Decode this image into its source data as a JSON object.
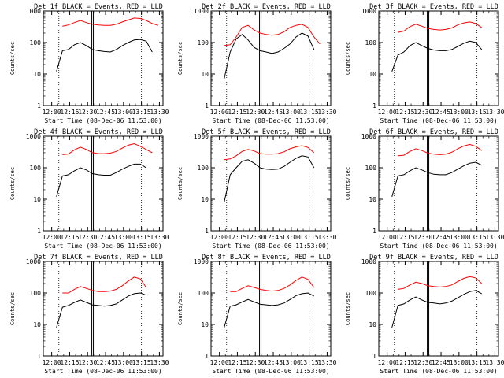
{
  "figure": {
    "ylabel": "Counts/sec",
    "xtick_labels": [
      "12:00",
      "12:15",
      "12:30",
      "12:45",
      "13:00",
      "13:15",
      "13:30"
    ],
    "ytick_labels": [
      "1",
      "10",
      "100",
      "1000"
    ]
  },
  "chart_data": [
    {
      "type": "line",
      "title": "Det 1f BLACK = Events, RED = LLD",
      "xlabel": "Start Time (08-Dec-06 11:53:00)",
      "ylabel": "Counts/sec",
      "yscale": "log",
      "ylim": [
        1,
        1000
      ],
      "x_minutes": [
        11,
        16,
        21,
        26,
        31,
        36,
        41,
        46,
        51,
        56,
        61,
        66,
        71,
        76,
        81,
        86,
        91,
        96
      ],
      "series": [
        {
          "name": "Events",
          "color": "#000000",
          "values": [
            12,
            55,
            60,
            85,
            100,
            80,
            60,
            55,
            52,
            50,
            60,
            80,
            100,
            120,
            125,
            110,
            50,
            null
          ]
        },
        {
          "name": "LLD",
          "color": "#ff0000",
          "values": [
            null,
            330,
            360,
            430,
            500,
            430,
            380,
            360,
            350,
            350,
            380,
            450,
            520,
            600,
            580,
            500,
            400,
            350
          ]
        }
      ]
    },
    {
      "type": "line",
      "title": "Det 2f BLACK = Events, RED = LLD",
      "xlabel": "Start Time (08-Dec-06 11:53:00)",
      "ylabel": "Counts/sec",
      "yscale": "log",
      "ylim": [
        1,
        1000
      ],
      "x_minutes": [
        11,
        16,
        21,
        26,
        31,
        36,
        41,
        46,
        51,
        56,
        61,
        66,
        71,
        76,
        81,
        86,
        91,
        96
      ],
      "series": [
        {
          "name": "Events",
          "color": "#000000",
          "values": [
            7,
            50,
            130,
            180,
            120,
            70,
            55,
            50,
            45,
            50,
            65,
            90,
            150,
            200,
            160,
            60,
            null,
            null
          ]
        },
        {
          "name": "LLD",
          "color": "#ff0000",
          "values": [
            80,
            85,
            150,
            300,
            350,
            250,
            200,
            180,
            170,
            180,
            220,
            300,
            350,
            380,
            300,
            150,
            90,
            null
          ]
        }
      ]
    },
    {
      "type": "line",
      "title": "Det 3f BLACK = Events, RED = LLD",
      "xlabel": "Start Time (08-Dec-06 11:53:00)",
      "ylabel": "Counts/sec",
      "yscale": "log",
      "ylim": [
        1,
        1000
      ],
      "x_minutes": [
        11,
        16,
        21,
        26,
        31,
        36,
        41,
        46,
        51,
        56,
        61,
        66,
        71,
        76,
        81,
        86,
        91,
        96
      ],
      "series": [
        {
          "name": "Events",
          "color": "#000000",
          "values": [
            12,
            40,
            50,
            80,
            100,
            80,
            65,
            58,
            55,
            55,
            60,
            75,
            95,
            110,
            100,
            60,
            null,
            null
          ]
        },
        {
          "name": "LLD",
          "color": "#ff0000",
          "values": [
            null,
            210,
            230,
            320,
            380,
            330,
            280,
            260,
            250,
            260,
            290,
            360,
            420,
            450,
            400,
            300,
            null,
            null
          ]
        }
      ]
    },
    {
      "type": "line",
      "title": "Det 4f BLACK = Events, RED = LLD",
      "xlabel": "Start Time (08-Dec-06 11:53:00)",
      "ylabel": "Counts/sec",
      "yscale": "log",
      "ylim": [
        1,
        1000
      ],
      "x_minutes": [
        11,
        16,
        21,
        26,
        31,
        36,
        41,
        46,
        51,
        56,
        61,
        66,
        71,
        76,
        81,
        86,
        91,
        96
      ],
      "series": [
        {
          "name": "Events",
          "color": "#000000",
          "values": [
            12,
            55,
            60,
            80,
            100,
            85,
            65,
            60,
            58,
            58,
            70,
            90,
            110,
            130,
            130,
            100,
            null,
            null
          ]
        },
        {
          "name": "LLD",
          "color": "#ff0000",
          "values": [
            null,
            260,
            270,
            370,
            450,
            380,
            300,
            280,
            280,
            290,
            330,
            420,
            520,
            580,
            480,
            380,
            300,
            null
          ]
        }
      ]
    },
    {
      "type": "line",
      "title": "Det 5f BLACK = Events, RED = LLD",
      "xlabel": "Start Time (08-Dec-06 11:53:00)",
      "ylabel": "Counts/sec",
      "yscale": "log",
      "ylim": [
        1,
        1000
      ],
      "x_minutes": [
        11,
        16,
        21,
        26,
        31,
        36,
        41,
        46,
        51,
        56,
        61,
        66,
        71,
        76,
        81,
        86,
        91,
        96
      ],
      "series": [
        {
          "name": "Events",
          "color": "#000000",
          "values": [
            8,
            60,
            100,
            160,
            180,
            140,
            100,
            90,
            88,
            90,
            110,
            150,
            200,
            240,
            220,
            100,
            null,
            null
          ]
        },
        {
          "name": "LLD",
          "color": "#ff0000",
          "values": [
            180,
            190,
            240,
            330,
            380,
            340,
            280,
            270,
            270,
            280,
            320,
            400,
            460,
            500,
            440,
            300,
            null,
            null
          ]
        }
      ]
    },
    {
      "type": "line",
      "title": "Det 6f BLACK = Events, RED = LLD",
      "xlabel": "Start Time (08-Dec-06 11:53:00)",
      "ylabel": "Counts/sec",
      "yscale": "log",
      "ylim": [
        1,
        1000
      ],
      "x_minutes": [
        11,
        16,
        21,
        26,
        31,
        36,
        41,
        46,
        51,
        56,
        61,
        66,
        71,
        76,
        81,
        86,
        91,
        96
      ],
      "series": [
        {
          "name": "Events",
          "color": "#000000",
          "values": [
            12,
            55,
            60,
            80,
            100,
            85,
            70,
            62,
            60,
            60,
            70,
            90,
            115,
            140,
            150,
            120,
            null,
            null
          ]
        },
        {
          "name": "LLD",
          "color": "#ff0000",
          "values": [
            null,
            240,
            250,
            330,
            400,
            350,
            290,
            270,
            260,
            270,
            310,
            400,
            490,
            550,
            480,
            350,
            null,
            null
          ]
        }
      ]
    },
    {
      "type": "line",
      "title": "Det 7f BLACK = Events, RED = LLD",
      "xlabel": "Start Time (08-Dec-06 11:53:00)",
      "ylabel": "Counts/sec",
      "yscale": "log",
      "ylim": [
        1,
        1000
      ],
      "x_minutes": [
        11,
        16,
        21,
        26,
        31,
        36,
        41,
        46,
        51,
        56,
        61,
        66,
        71,
        76,
        81,
        86,
        91,
        96
      ],
      "series": [
        {
          "name": "Events",
          "color": "#000000",
          "values": [
            8,
            35,
            40,
            50,
            60,
            50,
            42,
            40,
            38,
            40,
            45,
            60,
            80,
            95,
            100,
            85,
            null,
            null
          ]
        },
        {
          "name": "LLD",
          "color": "#ff0000",
          "values": [
            null,
            100,
            100,
            130,
            160,
            140,
            120,
            110,
            110,
            115,
            130,
            170,
            240,
            320,
            280,
            150,
            null,
            null
          ]
        }
      ]
    },
    {
      "type": "line",
      "title": "Det 8f BLACK = Events, RED = LLD",
      "xlabel": "Start Time (08-Dec-06 11:53:00)",
      "ylabel": "Counts/sec",
      "yscale": "log",
      "ylim": [
        1,
        1000
      ],
      "x_minutes": [
        11,
        16,
        21,
        26,
        31,
        36,
        41,
        46,
        51,
        56,
        61,
        66,
        71,
        76,
        81,
        86,
        91,
        96
      ],
      "series": [
        {
          "name": "Events",
          "color": "#000000",
          "values": [
            8,
            38,
            42,
            52,
            62,
            52,
            44,
            42,
            40,
            42,
            48,
            62,
            82,
            95,
            100,
            80,
            null,
            null
          ]
        },
        {
          "name": "LLD",
          "color": "#ff0000",
          "values": [
            null,
            110,
            110,
            140,
            170,
            150,
            130,
            120,
            115,
            120,
            140,
            180,
            250,
            320,
            270,
            150,
            null,
            null
          ]
        }
      ]
    },
    {
      "type": "line",
      "title": "Det 9f BLACK = Events, RED = LLD",
      "xlabel": "Start Time (08-Dec-06 11:53:00)",
      "ylabel": "Counts/sec",
      "yscale": "log",
      "ylim": [
        1,
        1000
      ],
      "x_minutes": [
        11,
        16,
        21,
        26,
        31,
        36,
        41,
        46,
        51,
        56,
        61,
        66,
        71,
        76,
        81,
        86,
        91,
        96
      ],
      "series": [
        {
          "name": "Events",
          "color": "#000000",
          "values": [
            8,
            40,
            45,
            60,
            75,
            60,
            50,
            48,
            45,
            48,
            55,
            70,
            90,
            110,
            120,
            95,
            null,
            null
          ]
        },
        {
          "name": "LLD",
          "color": "#ff0000",
          "values": [
            null,
            130,
            140,
            180,
            220,
            200,
            170,
            160,
            155,
            160,
            180,
            230,
            290,
            330,
            300,
            200,
            null,
            null
          ]
        }
      ]
    }
  ]
}
